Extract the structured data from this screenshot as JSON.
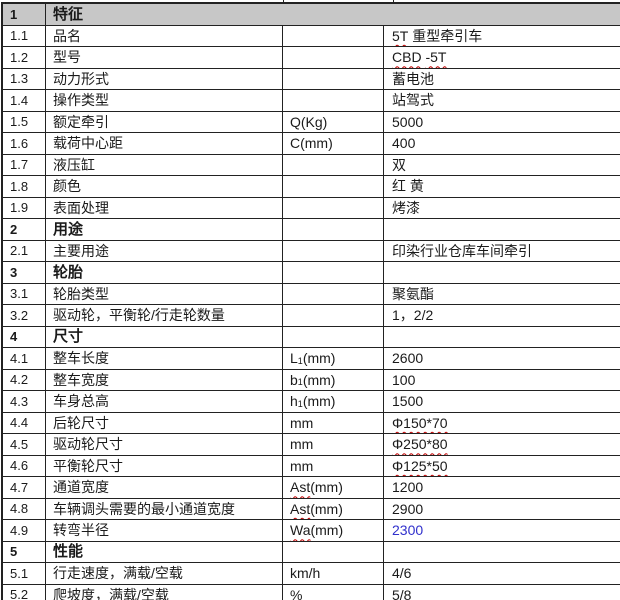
{
  "document": {
    "type": "specification-table",
    "colors": {
      "section_header_bg": "#C7C7C7",
      "grid_border": "#222222",
      "text": "#1A1A1A",
      "spellcheck_red": "#C00000",
      "value_blue": "#3030CC"
    },
    "table": {
      "rows": [
        {
          "num": "1",
          "label": "特征",
          "section": true,
          "gray": true,
          "merged": true,
          "unit": [],
          "value": []
        },
        {
          "num": "1.1",
          "label": "品名",
          "unit": [],
          "value": [
            {
              "t": "5T",
              "sq": true
            },
            {
              "t": " 重型牵引车"
            }
          ]
        },
        {
          "num": "1.2",
          "label": "型号",
          "unit": [],
          "value": [
            {
              "t": "CBD",
              "sq": true
            },
            {
              "t": " "
            },
            {
              "t": "-5T",
              "sq": true
            }
          ]
        },
        {
          "num": "1.3",
          "label": "动力形式",
          "unit": [],
          "value": [
            {
              "t": "蓄电池"
            }
          ]
        },
        {
          "num": "1.4",
          "label": "操作类型",
          "unit": [],
          "value": [
            {
              "t": "站驾式"
            }
          ]
        },
        {
          "num": "1.5",
          "label": "额定牵引",
          "unit": [
            {
              "t": "Q(Kg)"
            }
          ],
          "value": [
            {
              "t": "5000"
            }
          ]
        },
        {
          "num": "1.6",
          "label": "载荷中心距",
          "unit": [
            {
              "t": "C(mm)"
            }
          ],
          "value": [
            {
              "t": "400"
            }
          ]
        },
        {
          "num": "1.7",
          "label": "液压缸",
          "unit": [],
          "value": [
            {
              "t": "双"
            }
          ]
        },
        {
          "num": "1.8",
          "label": "颜色",
          "unit": [],
          "value": [
            {
              "t": "红 黄"
            }
          ]
        },
        {
          "num": "1.9",
          "label": "表面处理",
          "unit": [],
          "value": [
            {
              "t": "烤漆"
            }
          ]
        },
        {
          "num": "2",
          "label": "用途",
          "section": true,
          "unit": [],
          "value": []
        },
        {
          "num": "2.1",
          "label": "主要用途",
          "unit": [],
          "value": [
            {
              "t": "印染行业仓库车间牵引"
            }
          ]
        },
        {
          "num": "3",
          "label": "轮胎",
          "section": true,
          "unit": [],
          "value": []
        },
        {
          "num": "3.1",
          "label": "轮胎类型",
          "unit": [],
          "value": [
            {
              "t": "聚氨酯"
            }
          ]
        },
        {
          "num": "3.2",
          "label": "驱动轮，平衡轮/行走轮数量",
          "unit": [],
          "value": [
            {
              "t": "1，2/2"
            }
          ]
        },
        {
          "num": "4",
          "label": "尺寸",
          "section": true,
          "unit": [],
          "value": []
        },
        {
          "num": "4.1",
          "label": "整车长度",
          "unit": [
            {
              "t": "L"
            },
            {
              "t": "1",
              "sub": true
            },
            {
              "t": "(mm)"
            }
          ],
          "value": [
            {
              "t": "2600"
            }
          ]
        },
        {
          "num": "4.2",
          "label": "整车宽度",
          "unit": [
            {
              "t": "b"
            },
            {
              "t": "1",
              "sub": true
            },
            {
              "t": "(mm)"
            }
          ],
          "value": [
            {
              "t": "100"
            }
          ]
        },
        {
          "num": "4.3",
          "label": "车身总高",
          "unit": [
            {
              "t": "h"
            },
            {
              "t": "1",
              "sub": true
            },
            {
              "t": "(mm)"
            }
          ],
          "value": [
            {
              "t": "1500"
            }
          ]
        },
        {
          "num": "4.4",
          "label": "后轮尺寸",
          "unit": [
            {
              "t": "mm"
            }
          ],
          "value": [
            {
              "t": "Φ150*70",
              "sq": true
            }
          ]
        },
        {
          "num": "4.5",
          "label": "驱动轮尺寸",
          "unit": [
            {
              "t": "mm"
            }
          ],
          "value": [
            {
              "t": "Φ250*80",
              "sq": true
            }
          ]
        },
        {
          "num": "4.6",
          "label": "平衡轮尺寸",
          "unit": [
            {
              "t": "mm"
            }
          ],
          "value": [
            {
              "t": "Φ125*50",
              "sq": true
            }
          ]
        },
        {
          "num": "4.7",
          "label": "通道宽度",
          "unit": [
            {
              "t": "Ast",
              "sq": true
            },
            {
              "t": "(mm)"
            }
          ],
          "value": [
            {
              "t": "1200"
            }
          ]
        },
        {
          "num": "4.8",
          "label": "车辆调头需要的最小通道宽度",
          "unit": [
            {
              "t": "Ast",
              "sq": true
            },
            {
              "t": "(mm)"
            }
          ],
          "value": [
            {
              "t": "2900"
            }
          ]
        },
        {
          "num": "4.9",
          "label": "转弯半径",
          "unit": [
            {
              "t": "Wa",
              "sq": true
            },
            {
              "t": "(mm)"
            }
          ],
          "value": [
            {
              "t": "2300",
              "blue": true
            }
          ]
        },
        {
          "num": "5",
          "label": "性能",
          "section": true,
          "unit": [],
          "value": []
        },
        {
          "num": "5.1",
          "label": "行走速度，满载/空载",
          "unit": [
            {
              "t": "km/h"
            }
          ],
          "value": [
            {
              "t": "4/6"
            }
          ]
        },
        {
          "num": "5.2",
          "label": "爬坡度，满载/空载",
          "unit": [
            {
              "t": "%"
            }
          ],
          "value": [
            {
              "t": "5/8"
            }
          ]
        }
      ]
    }
  }
}
